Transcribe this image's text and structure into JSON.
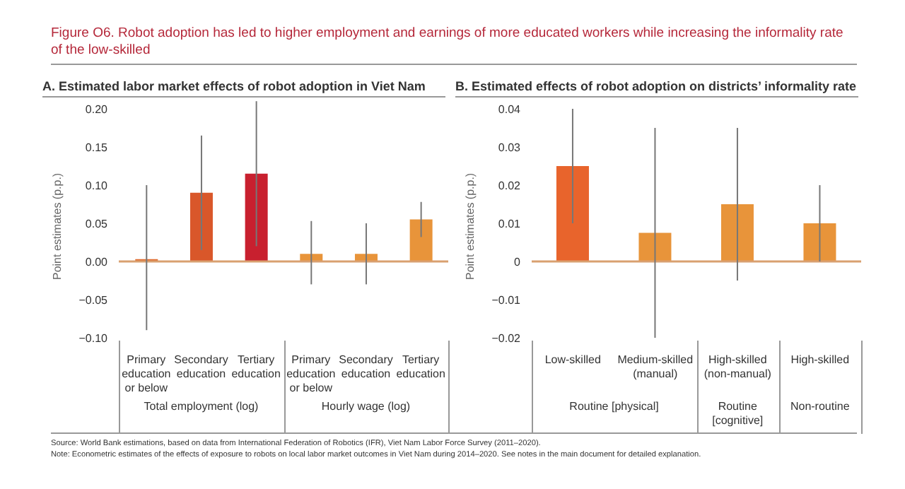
{
  "chart_data": [
    {
      "type": "bar",
      "title": "Figure O6. Robot adoption has led to higher employment and earnings of more educated workers while increasing the informality rate of the low-skilled",
      "subtitle": "A. Estimated labor market effects of robot adoption in Viet Nam",
      "ylabel": "Point estimates (p.p.)",
      "categories": [
        "Primary education or below",
        "Secondary education",
        "Tertiary education",
        "Primary education or below",
        "Secondary education",
        "Tertiary education"
      ],
      "values": [
        0.003,
        0.09,
        0.115,
        0.01,
        0.01,
        0.055
      ],
      "colors": [
        "#e06a2c",
        "#d9572a",
        "#c8202f",
        "#e8943a",
        "#e8943a",
        "#e8943a"
      ],
      "errors": [
        [
          -0.09,
          0.1
        ],
        [
          0.015,
          0.165
        ],
        [
          0.02,
          0.21
        ],
        [
          -0.03,
          0.053
        ],
        [
          -0.03,
          0.05
        ],
        [
          0.032,
          0.078
        ]
      ],
      "ylim": [
        -0.1,
        0.2
      ],
      "yticks": [
        {
          "value": -0.1,
          "label": "−0.10"
        },
        {
          "value": -0.05,
          "label": "−0.05"
        },
        {
          "value": 0,
          "label": "0.00"
        },
        {
          "value": 0.05,
          "label": "0.05"
        },
        {
          "value": 0.1,
          "label": "0.10"
        },
        {
          "value": 0.15,
          "label": "0.15"
        },
        {
          "value": 0.2,
          "label": "0.20"
        }
      ],
      "ref_lines": [
        {
          "axis": "y",
          "value": 0,
          "color": "#d9a070"
        }
      ],
      "annotations": [
        "Total employment (log)",
        "Hourly wage (log)",
        "Source: World Bank estimations, based on data from International Federation of Robotics (IFR), Viet Nam Labor Force Survey (2011–2020).",
        "Note: Econometric estimates of the effects of exposure to robots on local labor market outcomes in Viet Nam during 2014–2020. See notes in the main document for detailed explanation."
      ]
    },
    {
      "type": "bar",
      "subtitle": "B. Estimated effects of robot adoption on districts’ informality rate",
      "ylabel": "Point estimates (p.p.)",
      "categories": [
        "Low-skilled",
        "Medium-skilled (manual)",
        "High-skilled (non-manual)",
        "High-skilled"
      ],
      "values": [
        0.025,
        0.0075,
        0.015,
        0.01
      ],
      "colors": [
        "#e8642c",
        "#e8943a",
        "#e8943a",
        "#e8943a"
      ],
      "errors": [
        [
          0.01,
          0.04
        ],
        [
          -0.02,
          0.035
        ],
        [
          -0.005,
          0.035
        ],
        [
          0,
          0.02
        ]
      ],
      "ylim": [
        -0.02,
        0.04
      ],
      "yticks": [
        {
          "value": -0.02,
          "label": "−0.02"
        },
        {
          "value": -0.01,
          "label": "−0.01"
        },
        {
          "value": 0,
          "label": "0"
        },
        {
          "value": 0.01,
          "label": "0.01"
        },
        {
          "value": 0.02,
          "label": "0.02"
        },
        {
          "value": 0.03,
          "label": "0.03"
        },
        {
          "value": 0.04,
          "label": "0.04"
        }
      ],
      "ref_lines": [
        {
          "axis": "y",
          "value": 0,
          "color": "#d9a070"
        }
      ],
      "annotations": [
        "Routine [physical]",
        "Routine [cognitive]",
        "Non-routine"
      ]
    }
  ]
}
